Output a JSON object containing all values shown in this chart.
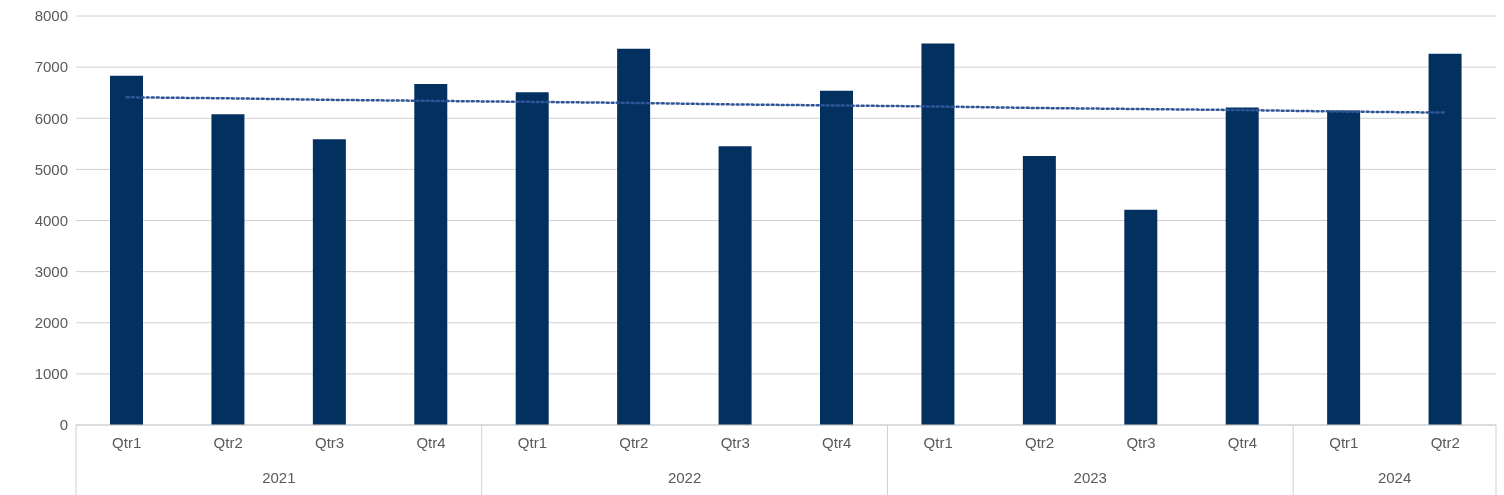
{
  "chart_data": {
    "type": "bar",
    "categories": [
      "Qtr1",
      "Qtr2",
      "Qtr3",
      "Qtr4",
      "Qtr1",
      "Qtr2",
      "Qtr3",
      "Qtr4",
      "Qtr1",
      "Qtr2",
      "Qtr3",
      "Qtr4",
      "Qtr1",
      "Qtr2"
    ],
    "series": [
      {
        "color": "#03315f",
        "values": [
          6830,
          6080,
          5590,
          6670,
          6510,
          7360,
          5450,
          6540,
          7460,
          5260,
          4210,
          6210,
          6150,
          7260
        ]
      },
      {
        "type": "line",
        "color": "#2f5597",
        "line_style": "dotted",
        "marker": "none",
        "values": [
          6410,
          6390,
          6360,
          6340,
          6320,
          6300,
          6270,
          6250,
          6230,
          6200,
          6180,
          6160,
          6130,
          6110
        ]
      }
    ],
    "annotations": [
      "2021",
      "2022",
      "2023",
      "2024"
    ],
    "ylim": [
      0,
      8000
    ],
    "yticks": [
      0,
      1000,
      2000,
      3000,
      4000,
      5000,
      6000,
      7000,
      8000
    ],
    "grid": "y",
    "legend": false
  }
}
